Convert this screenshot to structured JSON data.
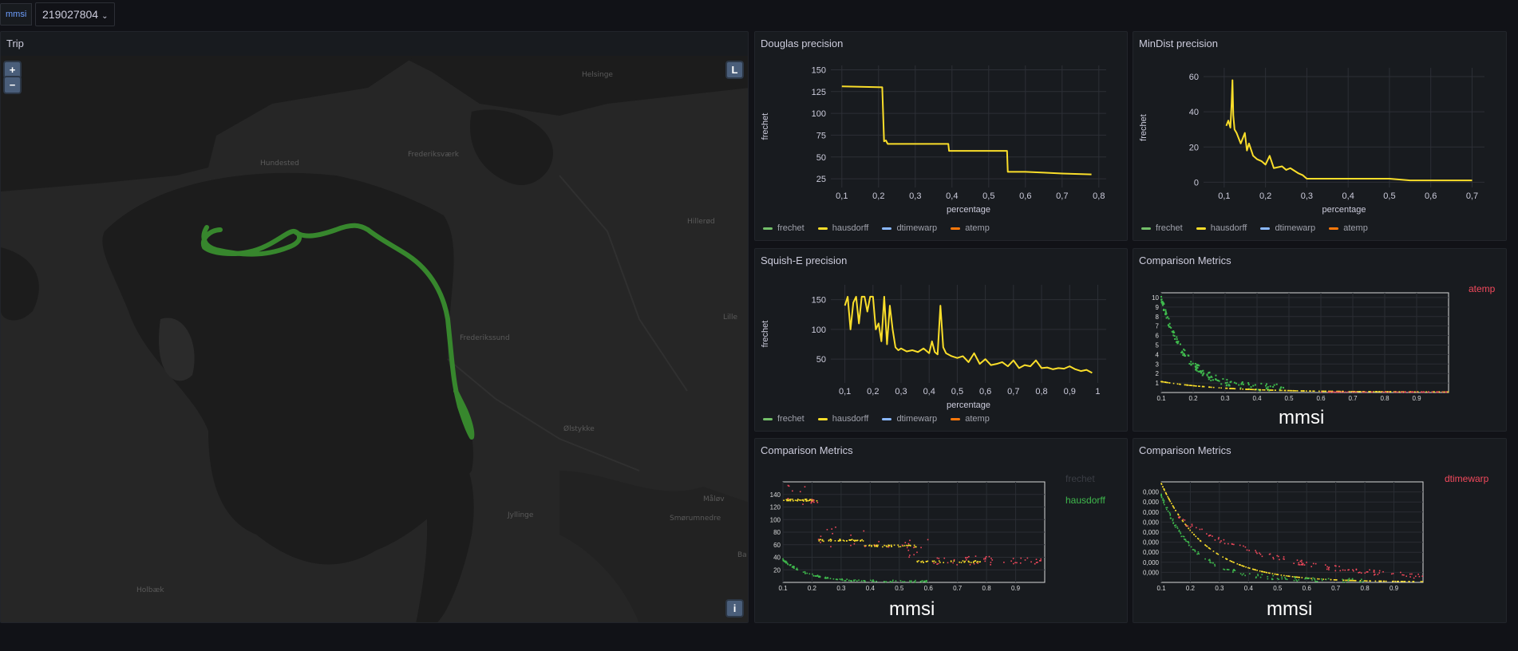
{
  "variables": {
    "label": "mmsi",
    "value": "219027804"
  },
  "colors": {
    "frechet": "#73bf69",
    "hausdorff": "#fade2a",
    "dtimewarp": "#8ab8ff",
    "atemp": "#ff780a",
    "red": "#f2495c",
    "green": "#3fb94d",
    "grid": "#2c2f36",
    "text": "#9fa1ab"
  },
  "trip": {
    "title": "Trip",
    "zoom_in": "+",
    "zoom_out": "−",
    "layers_label": "L",
    "info_label": "i",
    "places": [
      "Helsinge",
      "Hundested",
      "Frederiksværk",
      "Hillerød",
      "Frederikssund",
      "Ølstykke",
      "Lille",
      "Måløv",
      "Smørumnedre",
      "Ba",
      "Holbæk",
      "Jyllinge"
    ]
  },
  "legend": [
    "frechet",
    "hausdorff",
    "dtimewarp",
    "atemp"
  ],
  "douglas": {
    "title": "Douglas precision",
    "chart_data": {
      "type": "line",
      "xlabel": "percentage",
      "ylabel": "frechet",
      "x_ticks": [
        "0,1",
        "0,2",
        "0,3",
        "0,4",
        "0,5",
        "0,6",
        "0,7",
        "0,8"
      ],
      "y_ticks": [
        "25",
        "50",
        "75",
        "100",
        "125",
        "150"
      ],
      "xlim": [
        0.07,
        0.82
      ],
      "ylim": [
        15,
        155
      ],
      "series": [
        {
          "name": "hausdorff",
          "x": [
            0.1,
            0.21,
            0.215,
            0.22,
            0.225,
            0.23,
            0.39,
            0.392,
            0.55,
            0.552,
            0.56,
            0.6,
            0.65,
            0.7,
            0.78
          ],
          "y": [
            131,
            130,
            68,
            69,
            65,
            65,
            65,
            57,
            57,
            33,
            33,
            33,
            32,
            31,
            30
          ]
        }
      ]
    }
  },
  "mindist": {
    "title": "MinDist precision",
    "chart_data": {
      "type": "line",
      "xlabel": "percentage",
      "ylabel": "frechet",
      "x_ticks": [
        "0,1",
        "0,2",
        "0,3",
        "0,4",
        "0,5",
        "0,6",
        "0,7"
      ],
      "y_ticks": [
        "0",
        "20",
        "40",
        "60"
      ],
      "xlim": [
        0.05,
        0.73
      ],
      "ylim": [
        -3,
        65
      ],
      "series": [
        {
          "name": "hausdorff",
          "x": [
            0.105,
            0.11,
            0.115,
            0.118,
            0.12,
            0.122,
            0.125,
            0.13,
            0.14,
            0.15,
            0.155,
            0.16,
            0.17,
            0.18,
            0.19,
            0.2,
            0.21,
            0.22,
            0.24,
            0.25,
            0.26,
            0.28,
            0.29,
            0.3,
            0.35,
            0.4,
            0.5,
            0.55,
            0.6,
            0.7
          ],
          "y": [
            32,
            35,
            31,
            45,
            58,
            38,
            30,
            28,
            22,
            28,
            18,
            22,
            15,
            13,
            12,
            10,
            15,
            8,
            9,
            7,
            8,
            5,
            4,
            2,
            2,
            2,
            2,
            1,
            1,
            1
          ]
        }
      ]
    }
  },
  "squish": {
    "title": "Squish-E precision",
    "chart_data": {
      "type": "line",
      "xlabel": "percentage",
      "ylabel": "frechet",
      "x_ticks": [
        "0,1",
        "0,2",
        "0,3",
        "0,4",
        "0,5",
        "0,6",
        "0,7",
        "0,8",
        "0,9",
        "1"
      ],
      "y_ticks": [
        "50",
        "100",
        "150"
      ],
      "xlim": [
        0.05,
        1.03
      ],
      "ylim": [
        10,
        175
      ],
      "series": [
        {
          "name": "hausdorff",
          "x": [
            0.1,
            0.11,
            0.12,
            0.13,
            0.14,
            0.15,
            0.16,
            0.17,
            0.18,
            0.19,
            0.2,
            0.21,
            0.22,
            0.23,
            0.24,
            0.25,
            0.26,
            0.27,
            0.28,
            0.29,
            0.3,
            0.32,
            0.34,
            0.36,
            0.38,
            0.4,
            0.41,
            0.42,
            0.43,
            0.44,
            0.45,
            0.46,
            0.48,
            0.5,
            0.52,
            0.54,
            0.56,
            0.58,
            0.6,
            0.62,
            0.64,
            0.66,
            0.68,
            0.7,
            0.72,
            0.74,
            0.76,
            0.78,
            0.8,
            0.82,
            0.84,
            0.86,
            0.88,
            0.9,
            0.92,
            0.94,
            0.96,
            0.98
          ],
          "y": [
            140,
            155,
            100,
            145,
            155,
            110,
            155,
            155,
            130,
            155,
            155,
            100,
            110,
            80,
            155,
            75,
            140,
            100,
            70,
            65,
            68,
            63,
            65,
            62,
            68,
            60,
            80,
            62,
            58,
            140,
            70,
            60,
            55,
            52,
            55,
            45,
            60,
            42,
            50,
            40,
            42,
            45,
            38,
            48,
            35,
            40,
            38,
            48,
            35,
            36,
            33,
            35,
            34,
            38,
            33,
            30,
            32,
            27
          ]
        }
      ]
    }
  },
  "comp1": {
    "title": "Comparison Metrics",
    "label": "atemp",
    "axis_label": "mmsi",
    "chart_data": {
      "type": "scatter",
      "x_ticks": [
        "0.1",
        "0.2",
        "0.3",
        "0.4",
        "0.5",
        "0.6",
        "0.7",
        "0.8",
        "0.9"
      ],
      "y_ticks": [
        "1",
        "2",
        "3",
        "4",
        "5",
        "6",
        "7",
        "8",
        "9",
        "10"
      ],
      "xlim": [
        0.1,
        1.0
      ],
      "ylim": [
        0,
        10.5
      ]
    }
  },
  "comp2": {
    "title": "Comparison Metrics",
    "label_a": "frechet",
    "label_b": "hausdorff",
    "axis_label": "mmsi",
    "chart_data": {
      "type": "scatter",
      "x_ticks": [
        "0.1",
        "0.2",
        "0.3",
        "0.4",
        "0.5",
        "0.6",
        "0.7",
        "0.8",
        "0.9"
      ],
      "y_ticks": [
        "20",
        "40",
        "60",
        "80",
        "100",
        "120",
        "140"
      ],
      "xlim": [
        0.1,
        1.0
      ],
      "ylim": [
        0,
        160
      ]
    }
  },
  "comp3": {
    "title": "Comparison Metrics",
    "label": "dtimewarp",
    "axis_label": "mmsi",
    "chart_data": {
      "type": "scatter",
      "x_ticks": [
        "0.1",
        "0.2",
        "0.3",
        "0.4",
        "0.5",
        "0.6",
        "0.7",
        "0.8",
        "0.9"
      ],
      "y_ticks": [
        "0,000",
        "0,000",
        "0,000",
        "0,000",
        "0,000",
        "0,000",
        "0,000",
        "0,000",
        "0,000"
      ],
      "xlim": [
        0.1,
        1.0
      ],
      "ylim": [
        0,
        10
      ]
    }
  }
}
